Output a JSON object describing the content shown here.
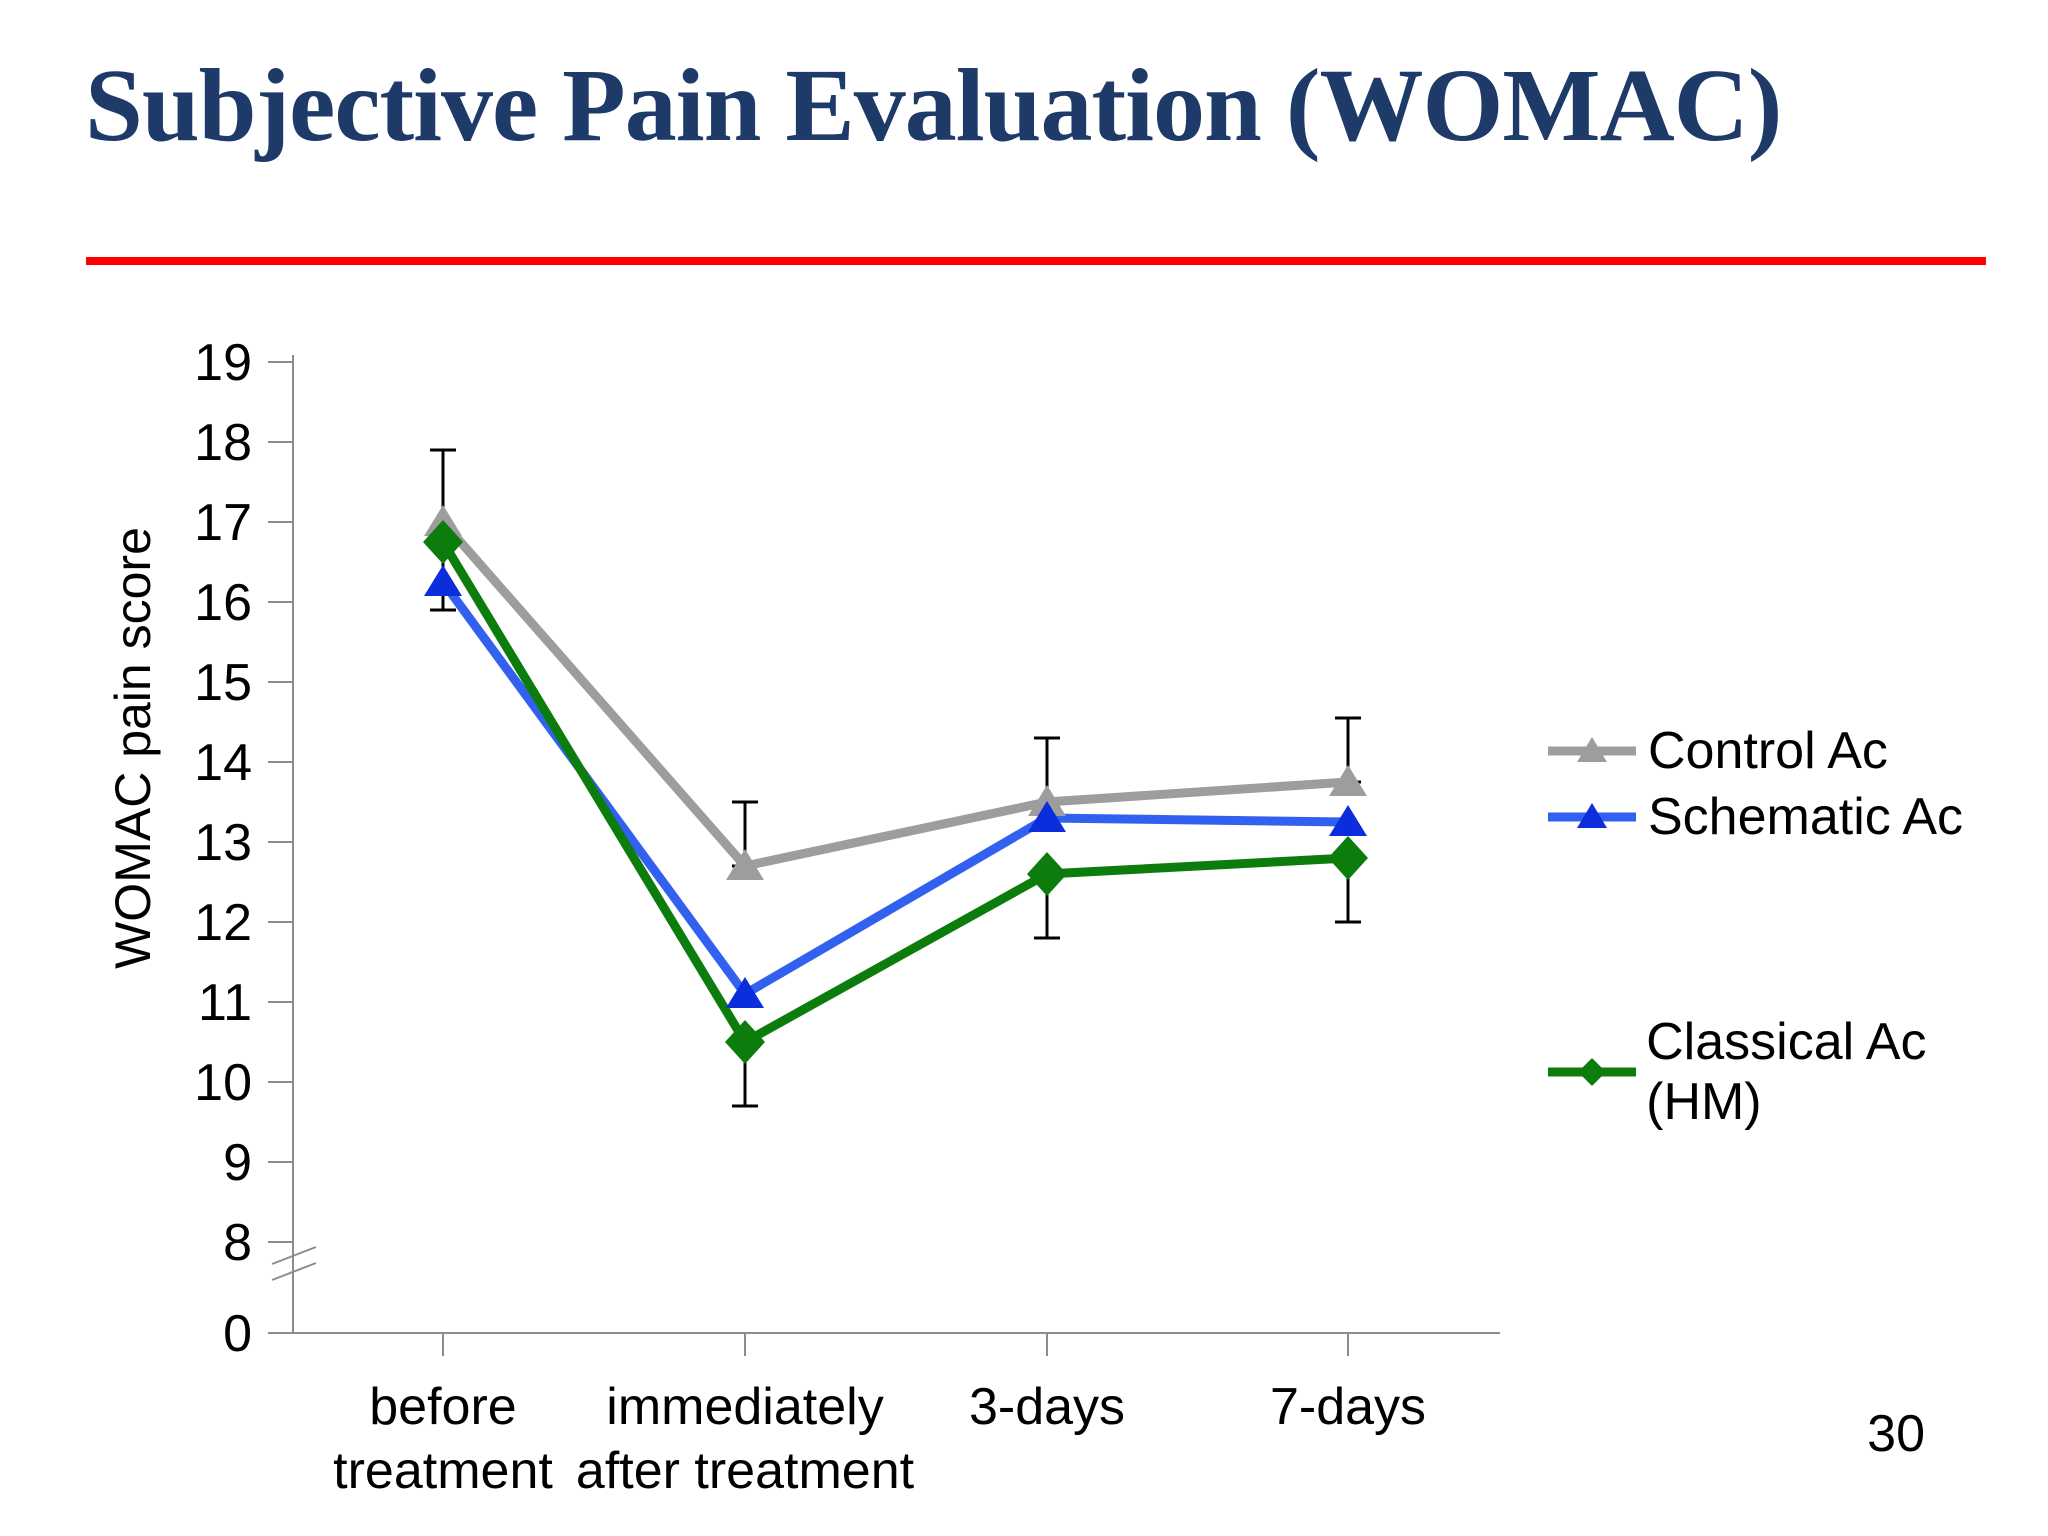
{
  "slide": {
    "title": "Subjective Pain Evaluation (WOMAC)",
    "title_color": "#1e3a68",
    "accent_rule_color": "#ff0000",
    "page_number": "30"
  },
  "chart_data": {
    "type": "line",
    "title": "",
    "xlabel": "",
    "ylabel": "WOMAC pain score",
    "categories": [
      "before\ntreatment",
      "immediately\nafter treatment",
      "3-days",
      "7-days"
    ],
    "y_ticks": [
      19,
      18,
      17,
      16,
      15,
      14,
      13,
      12,
      11,
      10,
      9,
      8,
      0
    ],
    "y_axis_break": true,
    "ylim": [
      8,
      19
    ],
    "grid": false,
    "legend_position": "right",
    "axis_color": "#8c8c8c",
    "text_color": "#000000",
    "error_bar_color": "#000000",
    "series": [
      {
        "name": "Control Ac",
        "marker": "triangle",
        "line_color": "#9d9d9d",
        "marker_color": "#9d9d9d",
        "values": [
          17.0,
          12.7,
          13.5,
          13.75
        ]
      },
      {
        "name": "Schematic Ac",
        "marker": "triangle",
        "line_color": "#3361ef",
        "marker_color": "#0b2ddb",
        "values": [
          16.25,
          11.1,
          13.3,
          13.25
        ]
      },
      {
        "name": "Classical Ac (HM)",
        "marker": "diamond",
        "line_color": "#0c7d0c",
        "marker_color": "#0c7d0c",
        "values": [
          16.75,
          10.5,
          12.6,
          12.8
        ]
      }
    ],
    "error_bars": [
      {
        "category_index": 0,
        "from": 15.9,
        "to": 17.9
      },
      {
        "category_index": 1,
        "from": 12.7,
        "to": 13.5
      },
      {
        "category_index": 1,
        "from": 9.7,
        "to": 10.5
      },
      {
        "category_index": 2,
        "from": 13.5,
        "to": 14.3
      },
      {
        "category_index": 2,
        "from": 11.8,
        "to": 12.6
      },
      {
        "category_index": 3,
        "from": 13.75,
        "to": 14.55
      },
      {
        "category_index": 3,
        "from": 12.0,
        "to": 12.8
      }
    ]
  }
}
